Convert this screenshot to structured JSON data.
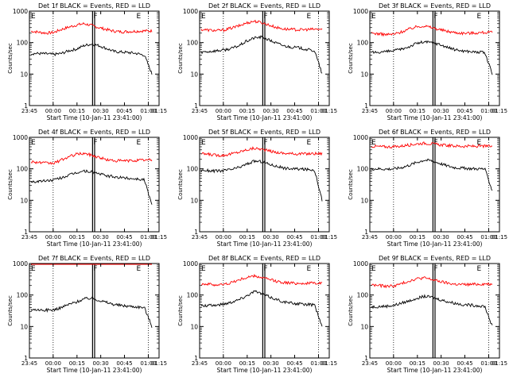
{
  "chart_data": [
    {
      "type": "line",
      "title": "Det 1f BLACK = Events, RED = LLD",
      "xlabel": "Start Time (10-Jan-11 23:41:00)",
      "ylabel": "Counts/sec",
      "ylim": [
        1,
        1000
      ],
      "yscale": "log",
      "grid": false,
      "x_tick_labels": [
        "23:45",
        "00:00",
        "00:15",
        "00:30",
        "00:45",
        "01:00",
        "01:15"
      ],
      "y_tick_labels": [
        "1",
        "10",
        "100",
        "1000"
      ],
      "markers": [
        "F",
        "E"
      ],
      "series": [
        {
          "color": "#ff0000",
          "values": [
            230,
            215,
            200,
            210,
            260,
            310,
            360,
            400,
            350,
            300,
            260,
            230,
            220,
            225,
            230,
            235,
            235
          ]
        },
        {
          "color": "#000000",
          "values": [
            45,
            45,
            44,
            42,
            45,
            55,
            62,
            80,
            90,
            80,
            65,
            52,
            50,
            48,
            45,
            40,
            10
          ]
        }
      ]
    },
    {
      "type": "line",
      "title": "Det 2f BLACK = Events, RED = LLD",
      "xlabel": "Start Time (10-Jan-11 23:41:00)",
      "ylabel": "Counts/sec",
      "ylim": [
        1,
        1000
      ],
      "yscale": "log",
      "grid": false,
      "x_tick_labels": [
        "23:45",
        "00:00",
        "00:15",
        "00:30",
        "00:45",
        "01:00",
        "01:15"
      ],
      "y_tick_labels": [
        "1",
        "10",
        "100",
        "1000"
      ],
      "markers": [
        "F",
        "E"
      ],
      "series": [
        {
          "color": "#ff0000",
          "values": [
            260,
            250,
            240,
            250,
            290,
            340,
            420,
            480,
            430,
            360,
            300,
            270,
            260,
            255,
            260,
            265,
            265
          ]
        },
        {
          "color": "#000000",
          "values": [
            50,
            52,
            55,
            58,
            65,
            80,
            110,
            140,
            150,
            120,
            95,
            78,
            72,
            68,
            60,
            55,
            10
          ]
        }
      ]
    },
    {
      "type": "line",
      "title": "Det 3f BLACK = Events, RED = LLD",
      "xlabel": "Start Time (10-Jan-11 23:41:00)",
      "ylabel": "Counts/sec",
      "ylim": [
        1,
        1000
      ],
      "yscale": "log",
      "grid": false,
      "x_tick_labels": [
        "23:45",
        "00:00",
        "00:15",
        "00:30",
        "00:45",
        "01:00",
        "01:15"
      ],
      "y_tick_labels": [
        "1",
        "10",
        "100",
        "1000"
      ],
      "markers": [
        "F",
        "E"
      ],
      "series": [
        {
          "color": "#ff0000",
          "values": [
            200,
            190,
            180,
            185,
            220,
            270,
            320,
            340,
            300,
            260,
            230,
            210,
            200,
            200,
            205,
            210,
            210
          ]
        },
        {
          "color": "#000000",
          "values": [
            48,
            50,
            52,
            55,
            62,
            75,
            95,
            105,
            100,
            88,
            72,
            60,
            55,
            52,
            50,
            48,
            10
          ]
        }
      ]
    },
    {
      "type": "line",
      "title": "Det 4f BLACK = Events, RED = LLD",
      "xlabel": "Start Time (10-Jan-11 23:41:00)",
      "ylabel": "Counts/sec",
      "ylim": [
        1,
        1000
      ],
      "yscale": "log",
      "grid": false,
      "x_tick_labels": [
        "23:45",
        "00:00",
        "00:15",
        "00:30",
        "00:45",
        "01:00",
        "01:15"
      ],
      "y_tick_labels": [
        "1",
        "10",
        "100",
        "1000"
      ],
      "markers": [
        "F",
        "E"
      ],
      "series": [
        {
          "color": "#ff0000",
          "values": [
            170,
            160,
            150,
            150,
            190,
            240,
            290,
            310,
            270,
            230,
            195,
            180,
            180,
            180,
            185,
            190,
            190
          ]
        },
        {
          "color": "#000000",
          "values": [
            38,
            40,
            42,
            44,
            52,
            62,
            75,
            85,
            80,
            70,
            60,
            55,
            52,
            50,
            48,
            45,
            7
          ]
        }
      ]
    },
    {
      "type": "line",
      "title": "Det 5f BLACK = Events, RED = LLD",
      "xlabel": "Start Time (10-Jan-11 23:41:00)",
      "ylabel": "Counts/sec",
      "ylim": [
        1,
        1000
      ],
      "yscale": "log",
      "grid": false,
      "x_tick_labels": [
        "23:45",
        "00:00",
        "00:15",
        "00:30",
        "00:45",
        "01:00",
        "01:15"
      ],
      "y_tick_labels": [
        "1",
        "10",
        "100",
        "1000"
      ],
      "markers": [
        "F",
        "E"
      ],
      "series": [
        {
          "color": "#ff0000",
          "values": [
            300,
            290,
            270,
            270,
            300,
            340,
            400,
            450,
            420,
            370,
            330,
            310,
            300,
            300,
            300,
            305,
            305
          ]
        },
        {
          "color": "#000000",
          "values": [
            90,
            88,
            85,
            88,
            95,
            110,
            140,
            175,
            170,
            140,
            120,
            105,
            100,
            98,
            95,
            92,
            10
          ]
        }
      ]
    },
    {
      "type": "line",
      "title": "Det 6f BLACK = Events, RED = LLD",
      "xlabel": "Start Time (10-Jan-11 23:41:00)",
      "ylabel": "Counts/sec",
      "ylim": [
        1,
        1000
      ],
      "yscale": "log",
      "grid": false,
      "x_tick_labels": [
        "23:45",
        "00:00",
        "00:15",
        "00:30",
        "00:45",
        "01:00",
        "01:15"
      ],
      "y_tick_labels": [
        "1",
        "10",
        "100",
        "1000"
      ],
      "markers": [
        "F",
        "E"
      ],
      "series": [
        {
          "color": "#ff0000",
          "values": [
            520,
            510,
            500,
            500,
            530,
            570,
            620,
            650,
            620,
            580,
            550,
            530,
            520,
            520,
            520,
            520,
            520
          ]
        },
        {
          "color": "#000000",
          "values": [
            100,
            100,
            98,
            100,
            110,
            130,
            160,
            190,
            180,
            150,
            125,
            110,
            105,
            102,
            100,
            100,
            20
          ]
        }
      ]
    },
    {
      "type": "line",
      "title": "Det 7f BLACK = Events, RED = LLD",
      "xlabel": "Start Time (10-Jan-11 23:41:00)",
      "ylabel": "Counts/sec",
      "ylim": [
        1,
        1000
      ],
      "yscale": "log",
      "grid": false,
      "x_tick_labels": [
        "23:45",
        "00:00",
        "00:15",
        "00:30",
        "00:45",
        "01:00",
        "01:15"
      ],
      "y_tick_labels": [
        "1",
        "10",
        "100",
        "1000"
      ],
      "markers": [
        "F",
        "E"
      ],
      "series": [
        {
          "color": "#ff0000",
          "values": [
            1050,
            1060,
            1070,
            1080,
            1090,
            1100,
            1100,
            1100,
            1100,
            1100,
            1100,
            1100,
            1100,
            1100,
            1100,
            1100,
            1100
          ]
        },
        {
          "color": "#000000",
          "values": [
            35,
            34,
            33,
            34,
            40,
            50,
            60,
            75,
            80,
            68,
            58,
            50,
            46,
            44,
            42,
            40,
            10
          ]
        }
      ]
    },
    {
      "type": "line",
      "title": "Det 8f BLACK = Events, RED = LLD",
      "xlabel": "Start Time (10-Jan-11 23:41:00)",
      "ylabel": "Counts/sec",
      "ylim": [
        1,
        1000
      ],
      "yscale": "log",
      "grid": false,
      "x_tick_labels": [
        "23:45",
        "00:00",
        "00:15",
        "00:30",
        "00:45",
        "01:00",
        "01:15"
      ],
      "y_tick_labels": [
        "1",
        "10",
        "100",
        "1000"
      ],
      "markers": [
        "F",
        "E"
      ],
      "series": [
        {
          "color": "#ff0000",
          "values": [
            230,
            220,
            210,
            215,
            250,
            300,
            360,
            400,
            360,
            310,
            270,
            250,
            240,
            235,
            235,
            240,
            240
          ]
        },
        {
          "color": "#000000",
          "values": [
            45,
            46,
            48,
            52,
            60,
            72,
            95,
            130,
            110,
            88,
            72,
            60,
            55,
            52,
            50,
            48,
            10
          ]
        }
      ]
    },
    {
      "type": "line",
      "title": "Det 9f BLACK = Events, RED = LLD",
      "xlabel": "Start Time (10-Jan-11 23:41:00)",
      "ylabel": "Counts/sec",
      "ylim": [
        1,
        1000
      ],
      "yscale": "log",
      "grid": false,
      "x_tick_labels": [
        "23:45",
        "00:00",
        "00:15",
        "00:30",
        "00:45",
        "01:00",
        "01:15"
      ],
      "y_tick_labels": [
        "1",
        "10",
        "100",
        "1000"
      ],
      "markers": [
        "F",
        "E"
      ],
      "series": [
        {
          "color": "#ff0000",
          "values": [
            210,
            200,
            190,
            195,
            230,
            280,
            330,
            350,
            310,
            270,
            240,
            220,
            215,
            215,
            220,
            225,
            225
          ]
        },
        {
          "color": "#000000",
          "values": [
            42,
            43,
            44,
            47,
            55,
            65,
            80,
            90,
            85,
            72,
            62,
            55,
            50,
            48,
            46,
            44,
            10
          ]
        }
      ]
    }
  ]
}
